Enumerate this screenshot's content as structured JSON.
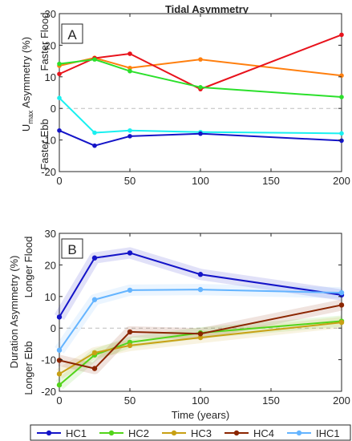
{
  "figure": {
    "title": "Tidal Asymmetry",
    "xlabel": "Time (years)",
    "zero_line_color": "#bdbdbd"
  },
  "chart_data": [
    {
      "panel_label": "A",
      "type": "line",
      "ylabel_parts": {
        "u": "U",
        "sub": "max",
        "rest": " Asymmetry (%)"
      },
      "y_top_label": "Faster Flood",
      "y_bottom_label": "Faster Ebb",
      "x": [
        0,
        25,
        50,
        100,
        200
      ],
      "xlim": [
        0,
        200
      ],
      "ylim": [
        -20,
        30
      ],
      "xticks": [
        0,
        50,
        100,
        150,
        200
      ],
      "yticks": [
        -20,
        -10,
        0,
        10,
        20,
        30
      ],
      "series": [
        {
          "color": "#ff7f0e",
          "values": [
            13.5,
            16.0,
            12.8,
            15.5,
            10.4
          ]
        },
        {
          "color": "#e8121b",
          "values": [
            10.9,
            15.9,
            17.3,
            6.1,
            23.3
          ]
        },
        {
          "color": "#2be02b",
          "values": [
            14.1,
            15.5,
            11.8,
            6.7,
            3.6
          ]
        },
        {
          "color": "#19f0f0",
          "values": [
            3.3,
            -7.7,
            -7.0,
            -7.5,
            -7.9
          ]
        },
        {
          "color": "#1414c8",
          "values": [
            -7.0,
            -11.8,
            -8.8,
            -8.0,
            -10.2
          ]
        }
      ]
    },
    {
      "panel_label": "B",
      "type": "line",
      "ylabel": "Duration Asymmetry (%)",
      "y_top_label": "Longer Flood",
      "y_bottom_label": "Longer Ebb",
      "x": [
        0,
        25,
        50,
        100,
        200
      ],
      "xlim": [
        0,
        200
      ],
      "ylim": [
        -20,
        30
      ],
      "xticks": [
        0,
        50,
        100,
        150,
        200
      ],
      "yticks": [
        -20,
        -10,
        0,
        10,
        20,
        30
      ],
      "series": [
        {
          "name": "HC1",
          "color": "#1414c8",
          "values": [
            3.5,
            22.2,
            23.8,
            17.0,
            10.5
          ]
        },
        {
          "name": "HC2",
          "color": "#52d41a",
          "values": [
            -18.0,
            -8.5,
            -4.5,
            -1.5,
            2.2
          ]
        },
        {
          "name": "HC3",
          "color": "#c8a014",
          "values": [
            -14.5,
            -7.8,
            -5.5,
            -3.0,
            1.8
          ]
        },
        {
          "name": "HC4",
          "color": "#8b2500",
          "values": [
            -10.2,
            -12.8,
            -1.2,
            -1.8,
            7.3
          ]
        },
        {
          "name": "IHC1",
          "color": "#64b4ff",
          "values": [
            -7.0,
            9.0,
            12.0,
            12.2,
            11.2
          ]
        }
      ]
    }
  ]
}
